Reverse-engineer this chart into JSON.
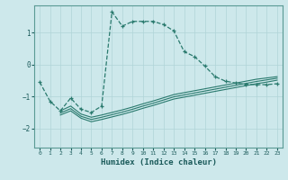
{
  "xlabel": "Humidex (Indice chaleur)",
  "ylabel": "",
  "background_color": "#cde8eb",
  "grid_color": "#b0d4d8",
  "line_color": "#2a7a6e",
  "xlim": [
    -0.5,
    23.5
  ],
  "ylim": [
    -2.6,
    1.85
  ],
  "yticks": [
    -2,
    -1,
    0,
    1
  ],
  "xticks": [
    0,
    1,
    2,
    3,
    4,
    5,
    6,
    7,
    8,
    9,
    10,
    11,
    12,
    13,
    14,
    15,
    16,
    17,
    18,
    19,
    20,
    21,
    22,
    23
  ],
  "main_line_x": [
    0,
    1,
    2,
    3,
    4,
    5,
    6,
    7,
    8,
    9,
    10,
    11,
    12,
    13,
    14,
    15,
    16,
    17,
    18,
    19,
    20,
    21,
    22,
    23
  ],
  "main_line_y": [
    -0.55,
    -1.15,
    -1.45,
    -1.05,
    -1.4,
    -1.5,
    -1.3,
    1.65,
    1.2,
    1.35,
    1.35,
    1.35,
    1.25,
    1.05,
    0.4,
    0.25,
    -0.05,
    -0.38,
    -0.52,
    -0.58,
    -0.62,
    -0.63,
    -0.63,
    -0.6
  ],
  "line1_x": [
    2,
    3,
    4,
    5,
    6,
    7,
    8,
    9,
    10,
    11,
    12,
    13,
    14,
    15,
    16,
    17,
    18,
    19,
    20,
    21,
    22,
    23
  ],
  "line1_y": [
    -1.45,
    -1.3,
    -1.55,
    -1.65,
    -1.58,
    -1.5,
    -1.42,
    -1.33,
    -1.23,
    -1.14,
    -1.04,
    -0.94,
    -0.88,
    -0.82,
    -0.76,
    -0.7,
    -0.64,
    -0.58,
    -0.52,
    -0.46,
    -0.42,
    -0.38
  ],
  "line2_x": [
    2,
    3,
    4,
    5,
    6,
    7,
    8,
    9,
    10,
    11,
    12,
    13,
    14,
    15,
    16,
    17,
    18,
    19,
    20,
    21,
    22,
    23
  ],
  "line2_y": [
    -1.52,
    -1.38,
    -1.62,
    -1.72,
    -1.65,
    -1.57,
    -1.49,
    -1.4,
    -1.3,
    -1.21,
    -1.11,
    -1.01,
    -0.95,
    -0.89,
    -0.83,
    -0.77,
    -0.71,
    -0.65,
    -0.59,
    -0.53,
    -0.48,
    -0.43
  ],
  "line3_x": [
    2,
    3,
    4,
    5,
    6,
    7,
    8,
    9,
    10,
    11,
    12,
    13,
    14,
    15,
    16,
    17,
    18,
    19,
    20,
    21,
    22,
    23
  ],
  "line3_y": [
    -1.58,
    -1.45,
    -1.68,
    -1.79,
    -1.72,
    -1.64,
    -1.56,
    -1.47,
    -1.37,
    -1.28,
    -1.18,
    -1.08,
    -1.02,
    -0.96,
    -0.9,
    -0.84,
    -0.78,
    -0.72,
    -0.66,
    -0.6,
    -0.55,
    -0.49
  ]
}
